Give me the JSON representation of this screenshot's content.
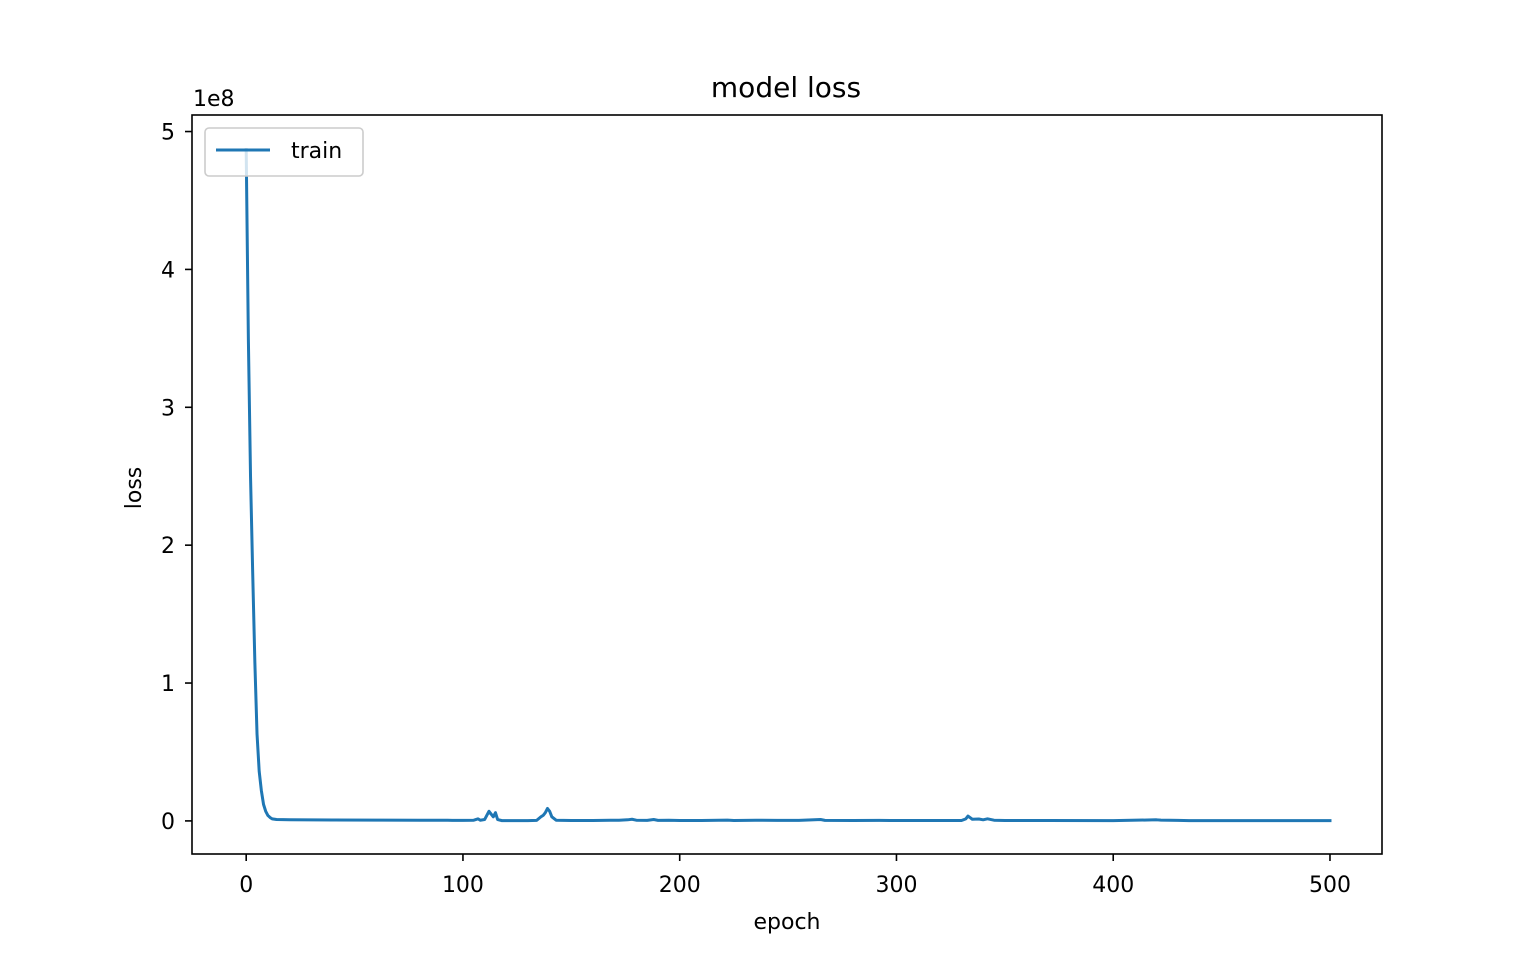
{
  "chart_data": {
    "type": "line",
    "title": "model loss",
    "xlabel": "epoch",
    "ylabel": "loss",
    "y_offset_label": "1e8",
    "y_scale": 100000000,
    "xlim": [
      -25,
      524
    ],
    "ylim": [
      -0.24,
      5.12
    ],
    "xticks": [
      0,
      100,
      200,
      300,
      400,
      500
    ],
    "yticks": [
      0,
      1,
      2,
      3,
      4,
      5
    ],
    "grid": false,
    "legend": {
      "position": "upper left",
      "entries": [
        "train"
      ]
    },
    "colors": {
      "train": "#1f77b4"
    },
    "series": [
      {
        "name": "train",
        "points": [
          [
            0,
            4.87
          ],
          [
            1,
            3.5
          ],
          [
            2,
            2.5
          ],
          [
            3,
            1.8
          ],
          [
            4,
            1.15
          ],
          [
            5,
            0.63
          ],
          [
            6,
            0.36
          ],
          [
            7,
            0.22
          ],
          [
            8,
            0.12
          ],
          [
            9,
            0.07
          ],
          [
            10,
            0.04
          ],
          [
            11,
            0.025
          ],
          [
            12,
            0.015
          ],
          [
            14,
            0.01
          ],
          [
            20,
            0.008
          ],
          [
            40,
            0.007
          ],
          [
            60,
            0.006
          ],
          [
            80,
            0.005
          ],
          [
            93,
            0.005
          ],
          [
            95,
            0.004
          ],
          [
            100,
            0.004
          ],
          [
            105,
            0.005
          ],
          [
            107,
            0.015
          ],
          [
            108,
            0.005
          ],
          [
            110,
            0.01
          ],
          [
            112,
            0.07
          ],
          [
            113,
            0.05
          ],
          [
            114,
            0.03
          ],
          [
            115,
            0.06
          ],
          [
            116,
            0.01
          ],
          [
            118,
            0.002
          ],
          [
            130,
            0.002
          ],
          [
            134,
            0.004
          ],
          [
            136,
            0.03
          ],
          [
            137,
            0.04
          ],
          [
            138,
            0.06
          ],
          [
            139,
            0.09
          ],
          [
            140,
            0.07
          ],
          [
            141,
            0.03
          ],
          [
            143,
            0.005
          ],
          [
            150,
            0.003
          ],
          [
            160,
            0.003
          ],
          [
            168,
            0.005
          ],
          [
            172,
            0.005
          ],
          [
            176,
            0.008
          ],
          [
            178,
            0.012
          ],
          [
            180,
            0.005
          ],
          [
            185,
            0.004
          ],
          [
            188,
            0.01
          ],
          [
            190,
            0.004
          ],
          [
            195,
            0.005
          ],
          [
            200,
            0.003
          ],
          [
            210,
            0.003
          ],
          [
            222,
            0.006
          ],
          [
            225,
            0.003
          ],
          [
            235,
            0.005
          ],
          [
            245,
            0.004
          ],
          [
            255,
            0.004
          ],
          [
            265,
            0.01
          ],
          [
            267,
            0.004
          ],
          [
            280,
            0.003
          ],
          [
            292,
            0.004
          ],
          [
            300,
            0.003
          ],
          [
            320,
            0.003
          ],
          [
            330,
            0.003
          ],
          [
            332,
            0.015
          ],
          [
            333,
            0.035
          ],
          [
            335,
            0.012
          ],
          [
            338,
            0.014
          ],
          [
            340,
            0.008
          ],
          [
            342,
            0.015
          ],
          [
            345,
            0.005
          ],
          [
            350,
            0.003
          ],
          [
            370,
            0.003
          ],
          [
            400,
            0.002
          ],
          [
            420,
            0.008
          ],
          [
            422,
            0.006
          ],
          [
            430,
            0.004
          ],
          [
            435,
            0.002
          ],
          [
            450,
            0.002
          ],
          [
            480,
            0.002
          ],
          [
            500,
            0.002
          ]
        ]
      }
    ]
  }
}
